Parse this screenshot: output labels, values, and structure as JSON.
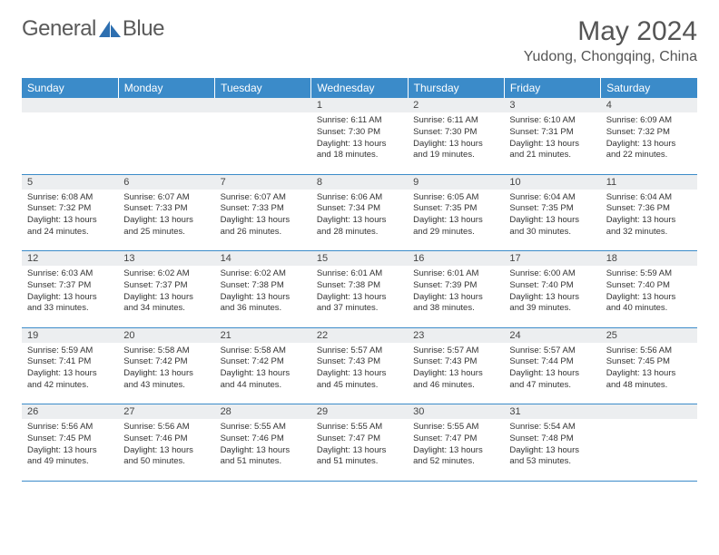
{
  "brand": {
    "part1": "General",
    "part2": "Blue"
  },
  "title": "May 2024",
  "location": "Yudong, Chongqing, China",
  "colors": {
    "header_bg": "#3b8bc9",
    "header_text": "#ffffff",
    "daynum_bg": "#eceef0",
    "border": "#3b8bc9",
    "logo_accent": "#2d6fb0"
  },
  "weekdays": [
    "Sunday",
    "Monday",
    "Tuesday",
    "Wednesday",
    "Thursday",
    "Friday",
    "Saturday"
  ],
  "weeks": [
    [
      null,
      null,
      null,
      {
        "n": "1",
        "sr": "6:11 AM",
        "ss": "7:30 PM",
        "dh": "13",
        "dm": "18"
      },
      {
        "n": "2",
        "sr": "6:11 AM",
        "ss": "7:30 PM",
        "dh": "13",
        "dm": "19"
      },
      {
        "n": "3",
        "sr": "6:10 AM",
        "ss": "7:31 PM",
        "dh": "13",
        "dm": "21"
      },
      {
        "n": "4",
        "sr": "6:09 AM",
        "ss": "7:32 PM",
        "dh": "13",
        "dm": "22"
      }
    ],
    [
      {
        "n": "5",
        "sr": "6:08 AM",
        "ss": "7:32 PM",
        "dh": "13",
        "dm": "24"
      },
      {
        "n": "6",
        "sr": "6:07 AM",
        "ss": "7:33 PM",
        "dh": "13",
        "dm": "25"
      },
      {
        "n": "7",
        "sr": "6:07 AM",
        "ss": "7:33 PM",
        "dh": "13",
        "dm": "26"
      },
      {
        "n": "8",
        "sr": "6:06 AM",
        "ss": "7:34 PM",
        "dh": "13",
        "dm": "28"
      },
      {
        "n": "9",
        "sr": "6:05 AM",
        "ss": "7:35 PM",
        "dh": "13",
        "dm": "29"
      },
      {
        "n": "10",
        "sr": "6:04 AM",
        "ss": "7:35 PM",
        "dh": "13",
        "dm": "30"
      },
      {
        "n": "11",
        "sr": "6:04 AM",
        "ss": "7:36 PM",
        "dh": "13",
        "dm": "32"
      }
    ],
    [
      {
        "n": "12",
        "sr": "6:03 AM",
        "ss": "7:37 PM",
        "dh": "13",
        "dm": "33"
      },
      {
        "n": "13",
        "sr": "6:02 AM",
        "ss": "7:37 PM",
        "dh": "13",
        "dm": "34"
      },
      {
        "n": "14",
        "sr": "6:02 AM",
        "ss": "7:38 PM",
        "dh": "13",
        "dm": "36"
      },
      {
        "n": "15",
        "sr": "6:01 AM",
        "ss": "7:38 PM",
        "dh": "13",
        "dm": "37"
      },
      {
        "n": "16",
        "sr": "6:01 AM",
        "ss": "7:39 PM",
        "dh": "13",
        "dm": "38"
      },
      {
        "n": "17",
        "sr": "6:00 AM",
        "ss": "7:40 PM",
        "dh": "13",
        "dm": "39"
      },
      {
        "n": "18",
        "sr": "5:59 AM",
        "ss": "7:40 PM",
        "dh": "13",
        "dm": "40"
      }
    ],
    [
      {
        "n": "19",
        "sr": "5:59 AM",
        "ss": "7:41 PM",
        "dh": "13",
        "dm": "42"
      },
      {
        "n": "20",
        "sr": "5:58 AM",
        "ss": "7:42 PM",
        "dh": "13",
        "dm": "43"
      },
      {
        "n": "21",
        "sr": "5:58 AM",
        "ss": "7:42 PM",
        "dh": "13",
        "dm": "44"
      },
      {
        "n": "22",
        "sr": "5:57 AM",
        "ss": "7:43 PM",
        "dh": "13",
        "dm": "45"
      },
      {
        "n": "23",
        "sr": "5:57 AM",
        "ss": "7:43 PM",
        "dh": "13",
        "dm": "46"
      },
      {
        "n": "24",
        "sr": "5:57 AM",
        "ss": "7:44 PM",
        "dh": "13",
        "dm": "47"
      },
      {
        "n": "25",
        "sr": "5:56 AM",
        "ss": "7:45 PM",
        "dh": "13",
        "dm": "48"
      }
    ],
    [
      {
        "n": "26",
        "sr": "5:56 AM",
        "ss": "7:45 PM",
        "dh": "13",
        "dm": "49"
      },
      {
        "n": "27",
        "sr": "5:56 AM",
        "ss": "7:46 PM",
        "dh": "13",
        "dm": "50"
      },
      {
        "n": "28",
        "sr": "5:55 AM",
        "ss": "7:46 PM",
        "dh": "13",
        "dm": "51"
      },
      {
        "n": "29",
        "sr": "5:55 AM",
        "ss": "7:47 PM",
        "dh": "13",
        "dm": "51"
      },
      {
        "n": "30",
        "sr": "5:55 AM",
        "ss": "7:47 PM",
        "dh": "13",
        "dm": "52"
      },
      {
        "n": "31",
        "sr": "5:54 AM",
        "ss": "7:48 PM",
        "dh": "13",
        "dm": "53"
      },
      null
    ]
  ],
  "labels": {
    "sunrise": "Sunrise: ",
    "sunset": "Sunset: ",
    "daylight_prefix": "Daylight: ",
    "hours_word": " hours",
    "and_word": "and ",
    "minutes_word": " minutes."
  }
}
